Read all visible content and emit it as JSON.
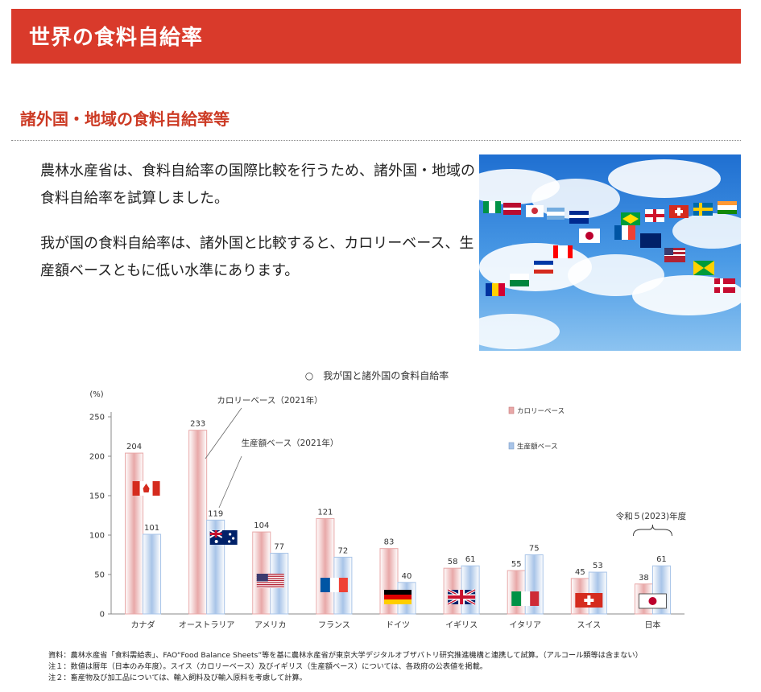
{
  "header": {
    "title": "世界の食料自給率"
  },
  "section": {
    "heading": "諸外国・地域の食料自給率等"
  },
  "intro": {
    "paragraph1": "農林水産省は、食料自給率の国際比較を行うため、諸外国・地域の食料自給率を試算しました。",
    "paragraph2": "我が国の食料自給率は、諸外国と比較すると、カロリーベース、生産額ベースともに低い水準にあります。"
  },
  "photo": {
    "subject": "flags-of-many-countries-against-blue-sky"
  },
  "chart_data": {
    "type": "bar",
    "title": "○　我が国と諸外国の食料自給率",
    "ylabel": "(%)",
    "ylim": [
      0,
      250
    ],
    "yticks": [
      "0",
      "50",
      "100",
      "150",
      "200",
      "250"
    ],
    "categories": [
      "カナダ",
      "オーストラリア",
      "アメリカ",
      "フランス",
      "ドイツ",
      "イギリス",
      "イタリア",
      "スイス",
      "日本"
    ],
    "series": [
      {
        "name": "カロリーベース",
        "values": [
          204,
          233,
          104,
          121,
          83,
          58,
          55,
          45,
          38
        ],
        "color": "#e8a8a8"
      },
      {
        "name": "生産額ベース",
        "values": [
          101,
          119,
          77,
          72,
          40,
          61,
          75,
          53,
          61
        ],
        "color": "#a8c4e8"
      }
    ],
    "annotations": {
      "calorie_callout": "カロリーベース（2021年）",
      "production_callout": "生産額ベース（2021年）",
      "japan_year": "令和５(2023)年度"
    },
    "flags": [
      "canada",
      "australia",
      "usa",
      "france",
      "germany",
      "uk",
      "italy",
      "switzerland",
      "japan"
    ],
    "legend_position": "top-right",
    "grid": false
  },
  "notes": {
    "source": "資料：農林水産省「食料需給表」、FAO“Food Balance Sheets”等を基に農林水産省が東京大学デジタルオブザバトリ研究推進機構と連携して試算。（アルコール類等は含まない）",
    "note1": "注１：数値は暦年（日本のみ年度）。スイス（カロリーベース）及びイギリス（生産額ベース）については、各政府の公表値を掲載。",
    "note2": "注２：畜産物及び加工品については、輸入飼料及び輸入原料を考慮して計算。"
  }
}
